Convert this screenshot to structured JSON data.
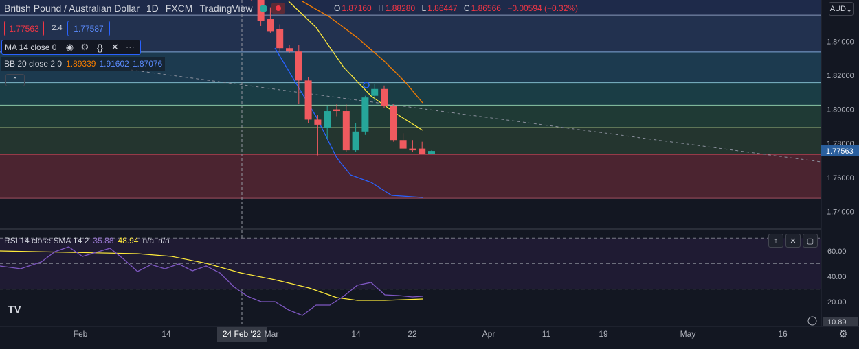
{
  "header": {
    "symbol": "British Pound / Australian Dollar",
    "interval": "1D",
    "broker": "FXCM",
    "source": "TradingView",
    "open_label": "O",
    "open": "1.87160",
    "high_label": "H",
    "high": "1.88280",
    "low_label": "L",
    "low": "1.86447",
    "close_label": "C",
    "close": "1.86566",
    "change": "−0.00594 (−0.32%)",
    "currency": "AUD"
  },
  "trade": {
    "sell": "1.77563",
    "spread": "2.4",
    "buy": "1.77587"
  },
  "indicators": {
    "ma": {
      "label": "MA 14 close 0"
    },
    "bb": {
      "label": "BB 20 close 2 0",
      "basis": "1.89339",
      "upper": "1.91602",
      "lower": "1.87076"
    },
    "rsi": {
      "label": "RSI 14 close SMA 14 2",
      "value": "35.88",
      "sma": "48.94",
      "na1": "n/a",
      "na2": "n/a"
    }
  },
  "colors": {
    "up": "#26a69a",
    "down": "#f05a5f",
    "ma": "#ffeb3b",
    "bb_basis": "#f57c00",
    "bb_lower": "#2962ff",
    "rsi": "#7e57c2",
    "rsi_sma": "#ffeb3b",
    "price_tag": "#2a5f9e"
  },
  "chart_data": [
    {
      "type": "candlestick",
      "title": "British Pound / Australian Dollar, 1D",
      "y_ticks": [
        "1.84000",
        "1.82000",
        "1.80000",
        "1.78000",
        "1.76000",
        "1.74000"
      ],
      "y_range": [
        1.7305,
        1.8643
      ],
      "last_price": "1.77563",
      "x_ticks": [
        "Feb",
        "14",
        "24 Feb '22",
        "Mar",
        "14",
        "22",
        "Apr",
        "11",
        "19",
        "May",
        "16"
      ],
      "crosshair_date": "24 Feb '22",
      "horizontal_levels": [
        1.8554,
        1.8337,
        1.8157,
        1.8025,
        1.7893,
        1.7736,
        1.7478
      ],
      "candles": [
        {
          "o": 1.88,
          "h": 1.884,
          "l": 1.868,
          "c": 1.872
        },
        {
          "o": 1.872,
          "h": 1.876,
          "l": 1.864,
          "c": 1.866
        },
        {
          "o": 1.866,
          "h": 1.868,
          "l": 1.849,
          "c": 1.852
        },
        {
          "o": 1.853,
          "h": 1.86,
          "l": 1.845,
          "c": 1.846
        },
        {
          "o": 1.847,
          "h": 1.85,
          "l": 1.834,
          "c": 1.836
        },
        {
          "o": 1.836,
          "h": 1.838,
          "l": 1.833,
          "c": 1.834
        },
        {
          "o": 1.834,
          "h": 1.838,
          "l": 1.803,
          "c": 1.817
        },
        {
          "o": 1.817,
          "h": 1.819,
          "l": 1.792,
          "c": 1.794
        },
        {
          "o": 1.794,
          "h": 1.797,
          "l": 1.773,
          "c": 1.791
        },
        {
          "o": 1.789,
          "h": 1.802,
          "l": 1.783,
          "c": 1.799
        },
        {
          "o": 1.8,
          "h": 1.803,
          "l": 1.796,
          "c": 1.799
        },
        {
          "o": 1.799,
          "h": 1.803,
          "l": 1.775,
          "c": 1.776
        },
        {
          "o": 1.776,
          "h": 1.792,
          "l": 1.775,
          "c": 1.787
        },
        {
          "o": 1.787,
          "h": 1.808,
          "l": 1.785,
          "c": 1.807
        },
        {
          "o": 1.808,
          "h": 1.815,
          "l": 1.805,
          "c": 1.812
        },
        {
          "o": 1.812,
          "h": 1.814,
          "l": 1.801,
          "c": 1.802
        },
        {
          "o": 1.802,
          "h": 1.803,
          "l": 1.781,
          "c": 1.782
        },
        {
          "o": 1.782,
          "h": 1.786,
          "l": 1.777,
          "c": 1.777
        },
        {
          "o": 1.777,
          "h": 1.782,
          "l": 1.775,
          "c": 1.776
        },
        {
          "o": 1.777,
          "h": 1.781,
          "l": 1.774,
          "c": 1.774
        },
        {
          "o": 1.774,
          "h": 1.776,
          "l": 1.774,
          "c": 1.7756
        }
      ],
      "candle_start_x": 352,
      "candle_step_x": 13.8,
      "ma_line": [
        [
          420,
          2
        ],
        [
          460,
          40
        ],
        [
          500,
          98
        ],
        [
          540,
          140
        ],
        [
          580,
          168
        ],
        [
          615,
          190
        ]
      ],
      "bb_basis_line": [
        [
          440,
          2
        ],
        [
          480,
          25
        ],
        [
          520,
          55
        ],
        [
          560,
          90
        ],
        [
          590,
          120
        ],
        [
          615,
          150
        ]
      ],
      "bb_lower_line": [
        [
          400,
          70
        ],
        [
          430,
          120
        ],
        [
          460,
          170
        ],
        [
          490,
          230
        ],
        [
          510,
          255
        ],
        [
          540,
          266
        ],
        [
          570,
          285
        ],
        [
          615,
          288
        ]
      ],
      "trendline": [
        [
          190,
          102
        ],
        [
          1195,
          236
        ]
      ]
    },
    {
      "type": "line",
      "title": "RSI",
      "y_ticks": [
        "60.00",
        "40.00",
        "20.00",
        "10.89"
      ],
      "y_range": [
        5,
        75
      ],
      "levels": [
        70,
        50,
        30
      ],
      "rsi": [
        [
          0,
          388
        ],
        [
          30,
          392
        ],
        [
          60,
          382
        ],
        [
          80,
          367
        ],
        [
          100,
          360
        ],
        [
          120,
          374
        ],
        [
          140,
          368
        ],
        [
          160,
          362
        ],
        [
          180,
          378
        ],
        [
          200,
          396
        ],
        [
          220,
          386
        ],
        [
          240,
          392
        ],
        [
          260,
          385
        ],
        [
          280,
          395
        ],
        [
          300,
          388
        ],
        [
          320,
          398
        ],
        [
          340,
          418
        ],
        [
          360,
          432
        ],
        [
          380,
          440
        ],
        [
          400,
          440
        ],
        [
          420,
          452
        ],
        [
          440,
          460
        ],
        [
          460,
          445
        ],
        [
          480,
          445
        ],
        [
          500,
          432
        ],
        [
          520,
          416
        ],
        [
          540,
          412
        ],
        [
          560,
          430
        ],
        [
          580,
          431
        ],
        [
          600,
          433
        ],
        [
          615,
          432
        ]
      ],
      "rsi_sma": [
        [
          0,
          366
        ],
        [
          100,
          368
        ],
        [
          200,
          370
        ],
        [
          250,
          374
        ],
        [
          300,
          384
        ],
        [
          350,
          398
        ],
        [
          400,
          408
        ],
        [
          450,
          420
        ],
        [
          490,
          434
        ],
        [
          520,
          438
        ],
        [
          560,
          438
        ],
        [
          615,
          436
        ]
      ]
    }
  ]
}
